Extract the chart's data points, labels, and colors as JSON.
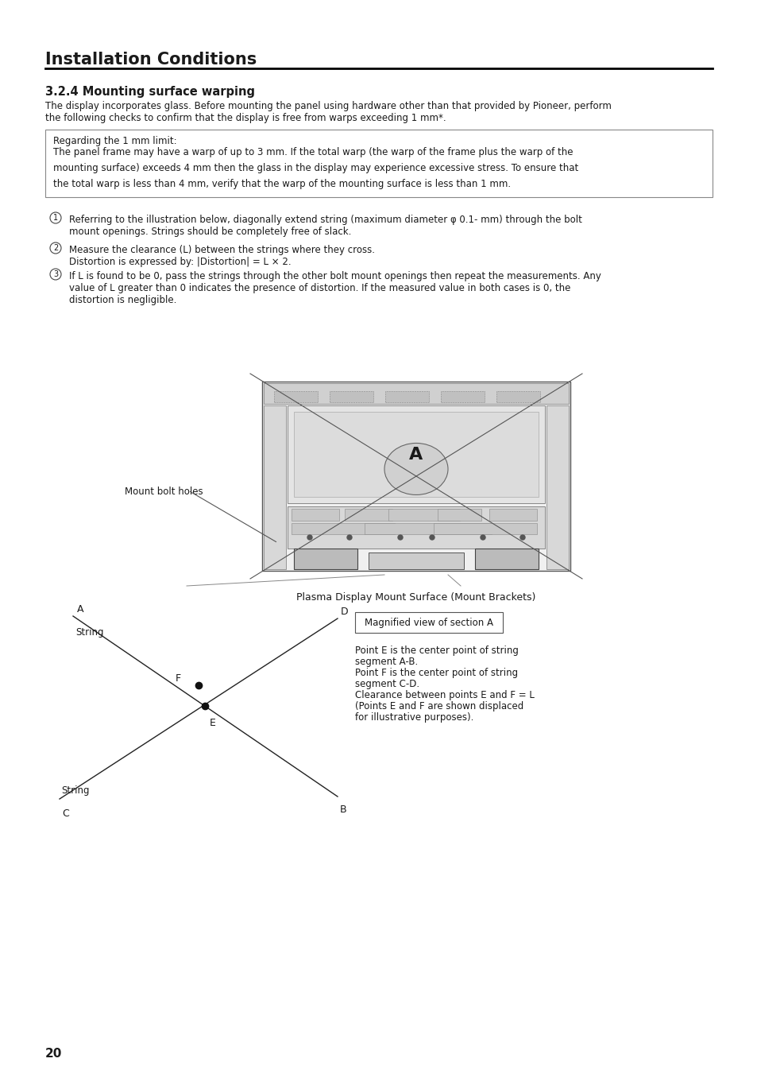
{
  "page_title": "Installation Conditions",
  "section_title": "3.2.4 Mounting surface warping",
  "intro_text": "The display incorporates glass. Before mounting the panel using hardware other than that provided by Pioneer, perform\nthe following checks to confirm that the display is free from warps exceeding 1 mm*.",
  "box_title": "Regarding the 1 mm limit:",
  "box_text": "The panel frame may have a warp of up to 3 mm. If the total warp (the warp of the frame plus the warp of the\nmounting surface) exceeds 4 mm then the glass in the display may experience excessive stress. To ensure that\nthe total warp is less than 4 mm, verify that the warp of the mounting surface is less than 1 mm.",
  "step1": "Referring to the illustration below, diagonally extend string (maximum diameter φ 0.1- mm) through the bolt\nmount openings. Strings should be completely free of slack.",
  "step2": "Measure the clearance (L) between the strings where they cross.\nDistortion is expressed by: |Distortion| = L × 2.",
  "step3": "If L is found to be 0, pass the strings through the other bolt mount openings then repeat the measurements. Any\nvalue of L greater than 0 indicates the presence of distortion. If the measured value in both cases is 0, the\ndistortion is negligible.",
  "diagram_caption": "Plasma Display Mount Surface (Mount Brackets)",
  "mount_bolt_holes_label": "Mount bolt holes",
  "label_A_diagram": "A",
  "magnified_box_label": "Magnified view of section A",
  "point_desc_line1": "Point E is the center point of string",
  "point_desc_line2": "segment A-B.",
  "point_desc_line3": "Point F is the center point of string",
  "point_desc_line4": "segment C-D.",
  "point_desc_line5": "Clearance between points E and F = L",
  "point_desc_line6": "(Points E and F are shown displaced",
  "point_desc_line7": "for illustrative purposes).",
  "page_number": "20",
  "bg_color": "#ffffff",
  "text_color": "#1a1a1a",
  "light_gray": "#e8e8e8",
  "mid_gray": "#aaaaaa",
  "dark_gray": "#555555",
  "line_color": "#333333"
}
